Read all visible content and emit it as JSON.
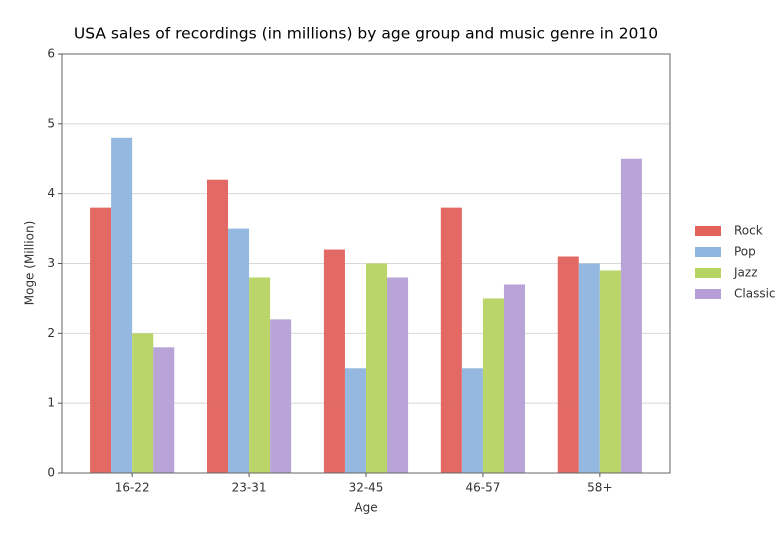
{
  "chart_data": {
    "type": "bar",
    "title": "USA sales of recordings (in millions) by age group and music genre in 2010",
    "x_label": "Age",
    "y_label": "Moge (Million)",
    "categories": [
      "16-22",
      "23-31",
      "32-45",
      "46-57",
      "58+"
    ],
    "series": [
      {
        "name": "Rock",
        "color": "#e2625c",
        "values": [
          3.8,
          4.2,
          3.2,
          3.8,
          3.1
        ]
      },
      {
        "name": "Pop",
        "color": "#8fb4de",
        "values": [
          4.8,
          3.5,
          1.5,
          1.5,
          3.0
        ]
      },
      {
        "name": "Jazz",
        "color": "#b6d463",
        "values": [
          2.0,
          2.8,
          3.0,
          2.5,
          2.9
        ]
      },
      {
        "name": "Classic",
        "color": "#b59fd6",
        "values": [
          1.8,
          2.2,
          2.8,
          2.7,
          4.5
        ]
      }
    ],
    "ylim": [
      0,
      6
    ],
    "yticks": [
      0,
      1,
      2,
      3,
      4,
      5,
      6
    ],
    "grid": true,
    "legend": "right"
  }
}
